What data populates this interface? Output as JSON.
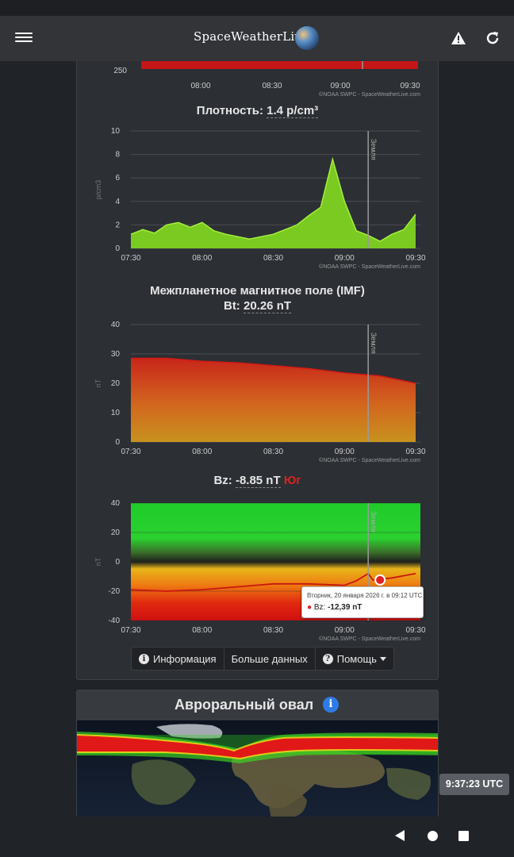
{
  "app": {
    "logo_text": "SpaceWeatherLive"
  },
  "icons": {
    "menu": "hamburger-menu-icon",
    "warning": "warning-triangle-icon",
    "reload": "reload-icon",
    "info": "info-circle-icon",
    "help": "question-circle-icon"
  },
  "speed_chart": {
    "y_tick_bottom": "250",
    "x_ticks": [
      "08:00",
      "08:30",
      "09:00",
      "09:30"
    ],
    "credit": "©NOAA SWPC - SpaceWeatherLive.com",
    "bar_color": "#c41616"
  },
  "density_chart": {
    "title_label": "Плотность:",
    "title_value": "1.4 p/cm³",
    "ylabel": "p/cm3",
    "marker_label": "Земля",
    "x_ticks": [
      "07:30",
      "08:00",
      "08:30",
      "09:00",
      "09:30"
    ],
    "y_ticks": [
      "0",
      "2",
      "4",
      "6",
      "8",
      "10"
    ],
    "credit": "©NOAA SWPC - SpaceWeatherLive.com",
    "color": "#7ed321"
  },
  "bt_chart": {
    "title_line1": "Межпланетное магнитное поле (IMF)",
    "title_label": "Bt:",
    "title_value": "20.26 nT",
    "ylabel": "nT",
    "marker_label": "Земля",
    "x_ticks": [
      "07:30",
      "08:00",
      "08:30",
      "09:00",
      "09:30"
    ],
    "y_ticks": [
      "0",
      "10",
      "20",
      "30",
      "40"
    ],
    "credit": "©NOAA SWPC - SpaceWeatherLive.com"
  },
  "bz_chart": {
    "title_label": "Bz:",
    "title_value": "-8.85 nT",
    "title_direction": "Юг",
    "ylabel": "nT",
    "marker_label": "Земля",
    "x_ticks": [
      "07:30",
      "08:00",
      "08:30",
      "09:00",
      "09:30"
    ],
    "y_ticks": [
      "-40",
      "-20",
      "0",
      "20",
      "40"
    ],
    "credit": "©NOAA SWPC - SpaceWeatherLive.com",
    "tooltip_date": "Вторник, 20 января 2026 г. в 09:12 UTC",
    "tooltip_series": "Bz:",
    "tooltip_value": "-12,39 nT"
  },
  "buttons": {
    "info": "Информация",
    "more_data": "Больше данных",
    "help": "Помощь"
  },
  "aurora": {
    "title": "Авроральный овал"
  },
  "utc_time": "9:37:23 UTC",
  "chart_data": [
    {
      "type": "area",
      "title": "Плотность: 1.4 p/cm3",
      "ylabel": "p/cm3",
      "ylim": [
        0,
        10
      ],
      "x": [
        "07:30",
        "07:35",
        "07:40",
        "07:45",
        "07:50",
        "07:55",
        "08:00",
        "08:05",
        "08:10",
        "08:15",
        "08:20",
        "08:25",
        "08:30",
        "08:35",
        "08:40",
        "08:45",
        "08:50",
        "08:55",
        "09:00",
        "09:05",
        "09:10",
        "09:15",
        "09:20",
        "09:25",
        "09:30"
      ],
      "values": [
        1.2,
        1.6,
        1.3,
        2.0,
        2.2,
        1.8,
        2.2,
        1.5,
        1.2,
        1.0,
        0.8,
        1.0,
        1.2,
        1.6,
        2.0,
        2.8,
        3.5,
        7.6,
        4.0,
        1.5,
        1.1,
        0.6,
        1.2,
        1.6,
        2.9
      ]
    },
    {
      "type": "area",
      "title": "Межпланетное магнитное поле (IMF) Bt: 20.26 nT",
      "ylabel": "nT",
      "ylim": [
        0,
        40
      ],
      "x": [
        "07:30",
        "07:45",
        "08:00",
        "08:15",
        "08:30",
        "08:45",
        "09:00",
        "09:15",
        "09:30"
      ],
      "values": [
        28.5,
        28.5,
        27.5,
        27,
        26,
        25,
        23.5,
        22.5,
        20
      ]
    },
    {
      "type": "line",
      "title": "Bz: -8.85 nT Юг",
      "ylabel": "nT",
      "ylim": [
        -40,
        40
      ],
      "x": [
        "07:30",
        "07:45",
        "08:00",
        "08:15",
        "08:30",
        "08:45",
        "09:00",
        "09:05",
        "09:10",
        "09:12",
        "09:20",
        "09:30"
      ],
      "values": [
        -19,
        -20,
        -19,
        -17,
        -15,
        -15,
        -16,
        -13,
        -8,
        -12.39,
        -11,
        -8
      ]
    }
  ]
}
